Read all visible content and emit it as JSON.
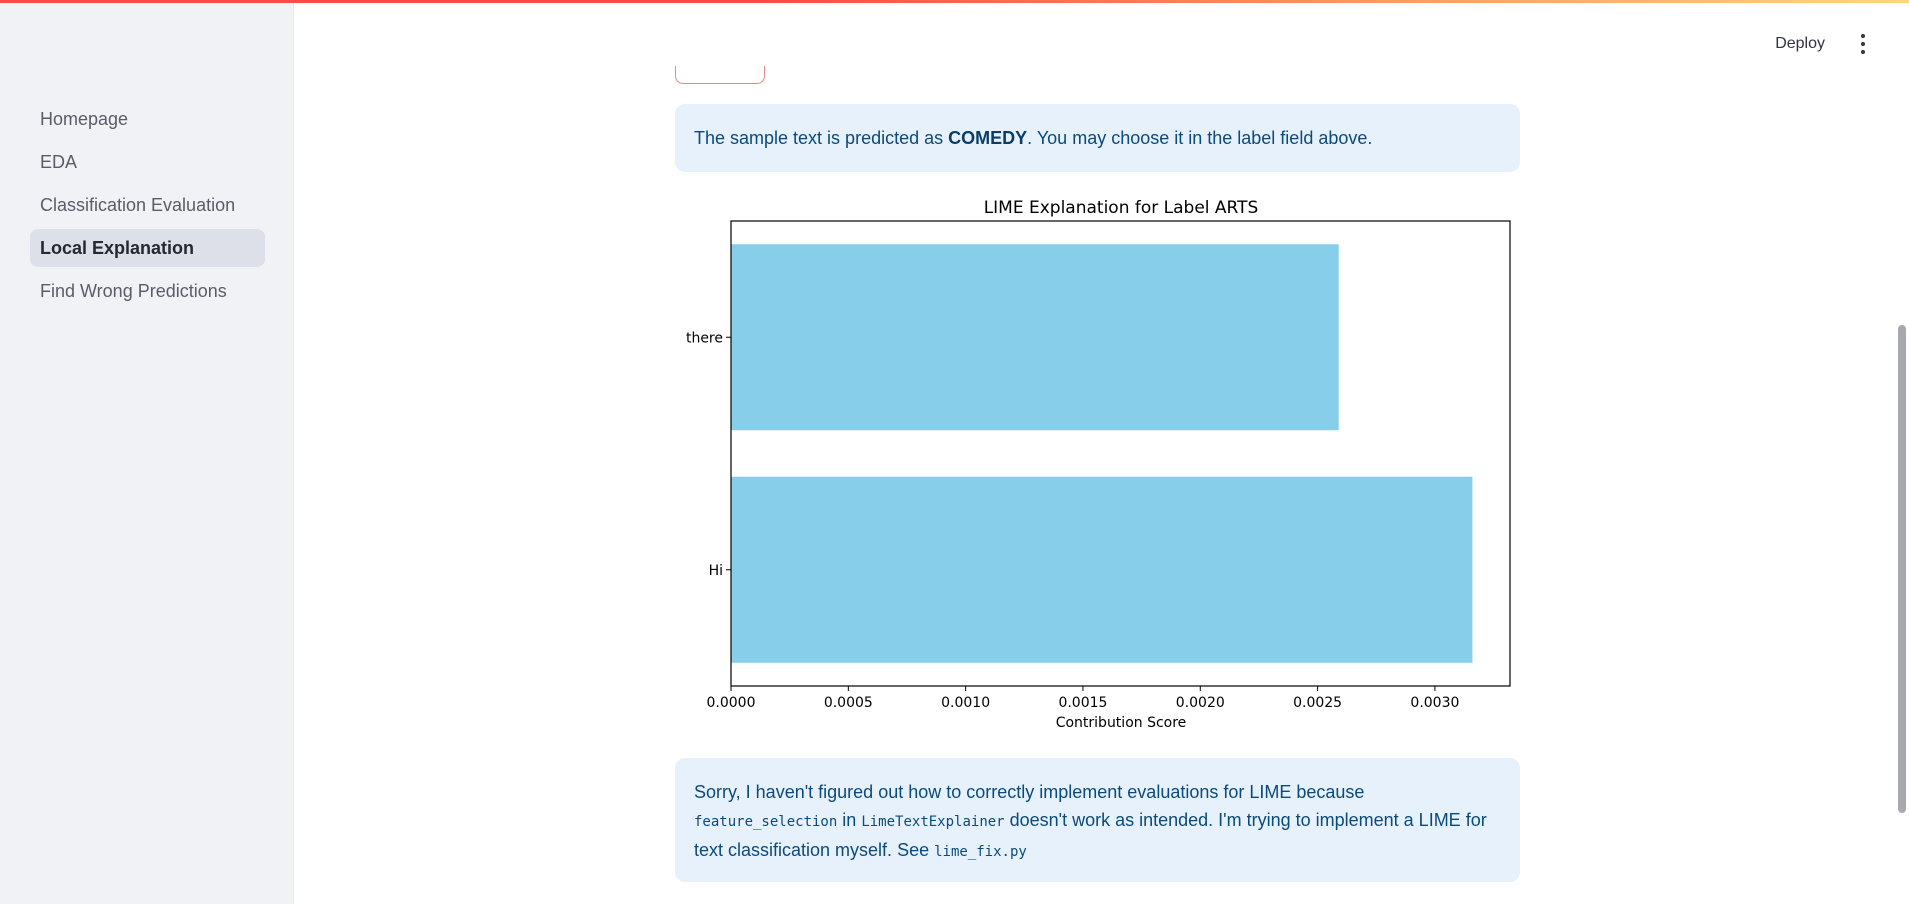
{
  "sidebar": {
    "items": [
      {
        "label": "Homepage",
        "active": false
      },
      {
        "label": "EDA",
        "active": false
      },
      {
        "label": "Classification Evaluation",
        "active": false
      },
      {
        "label": "Local Explanation",
        "active": true
      },
      {
        "label": "Find Wrong Predictions",
        "active": false
      }
    ]
  },
  "header": {
    "deploy_label": "Deploy",
    "menu_icon": "vertical-ellipsis-icon"
  },
  "prediction_alert": {
    "prefix": "The sample text is predicted as ",
    "label": "COMEDY",
    "suffix": ". You may choose it in the label field above."
  },
  "chart_data": {
    "type": "bar",
    "orientation": "horizontal",
    "title": "LIME Explanation for Label ARTS",
    "xlabel": "Contribution Score",
    "ylabel": "",
    "categories": [
      "there",
      "Hi"
    ],
    "values": [
      0.00259,
      0.00316
    ],
    "xlim": [
      0,
      0.00332
    ],
    "xticks": [
      "0.0000",
      "0.0005",
      "0.0010",
      "0.0015",
      "0.0020",
      "0.0025",
      "0.0030"
    ],
    "xtick_values": [
      0,
      0.0005,
      0.001,
      0.0015,
      0.002,
      0.0025,
      0.003
    ],
    "bar_color": "#87ceeb",
    "grid": false
  },
  "lime_alert": {
    "text1": "Sorry, I haven't figured out how to correctly implement evaluations for LIME because",
    "code1": "feature_selection",
    "text2": " in ",
    "code2": "LimeTextExplainer",
    "text3": " doesn't work as intended. I'm trying to implement a LIME for text classification myself. See ",
    "code3": "lime_fix.py"
  },
  "colors": {
    "sidebar_bg": "#f0f2f6",
    "active_item_bg": "#dde0e8",
    "alert_bg": "#e7f1fb",
    "alert_text": "#0a4a7c",
    "accent": "#ff4b4b"
  }
}
